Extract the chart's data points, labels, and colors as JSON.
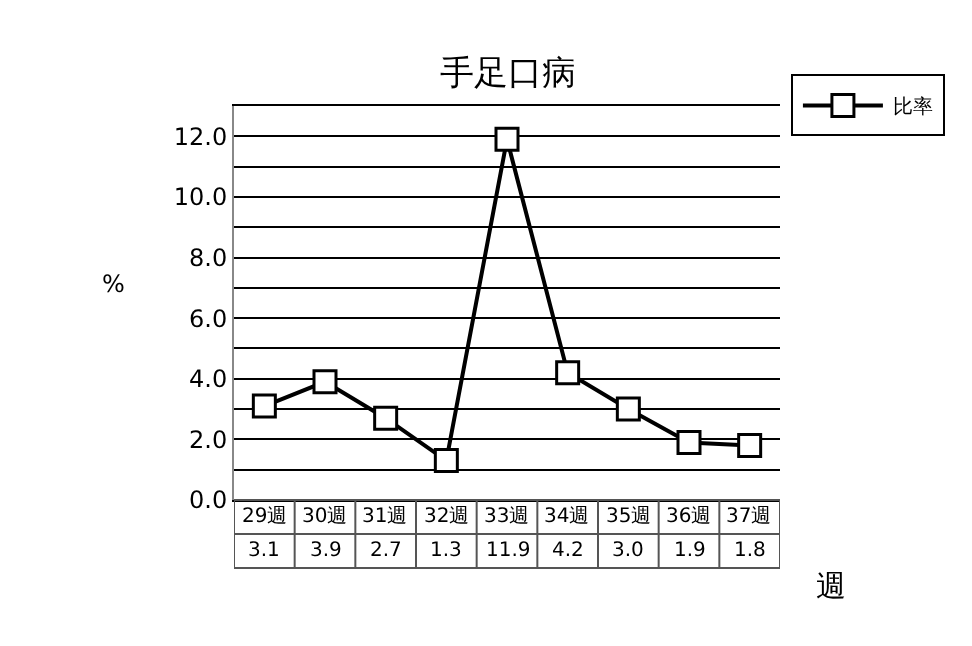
{
  "chart_data": {
    "type": "line",
    "title": "手足口病",
    "ylabel": "%",
    "xlabel": "週",
    "categories": [
      "29週",
      "30週",
      "31週",
      "32週",
      "33週",
      "34週",
      "35週",
      "36週",
      "37週"
    ],
    "series": [
      {
        "name": "比率",
        "color": "#000000",
        "values": [
          3.1,
          3.9,
          2.7,
          1.3,
          11.9,
          4.2,
          3.0,
          1.9,
          1.8
        ],
        "value_labels": [
          "3.1",
          "3.9",
          "2.7",
          "1.3",
          "11.9",
          "4.2",
          "3.0",
          "1.9",
          "1.8"
        ]
      }
    ],
    "ylim": [
      0,
      13
    ],
    "yticks": [
      {
        "value": 0,
        "label": "0.0"
      },
      {
        "value": 1,
        "label": null
      },
      {
        "value": 2,
        "label": "2.0"
      },
      {
        "value": 3,
        "label": null
      },
      {
        "value": 4,
        "label": "4.0"
      },
      {
        "value": 5,
        "label": null
      },
      {
        "value": 6,
        "label": "6.0"
      },
      {
        "value": 7,
        "label": null
      },
      {
        "value": 8,
        "label": "8.0"
      },
      {
        "value": 9,
        "label": null
      },
      {
        "value": 10,
        "label": "10.0"
      },
      {
        "value": 11,
        "label": null
      },
      {
        "value": 12,
        "label": "12.0"
      },
      {
        "value": 13,
        "label": null
      }
    ],
    "grid": "y",
    "legend": "top right",
    "marker": "square",
    "line_style": "solid"
  }
}
